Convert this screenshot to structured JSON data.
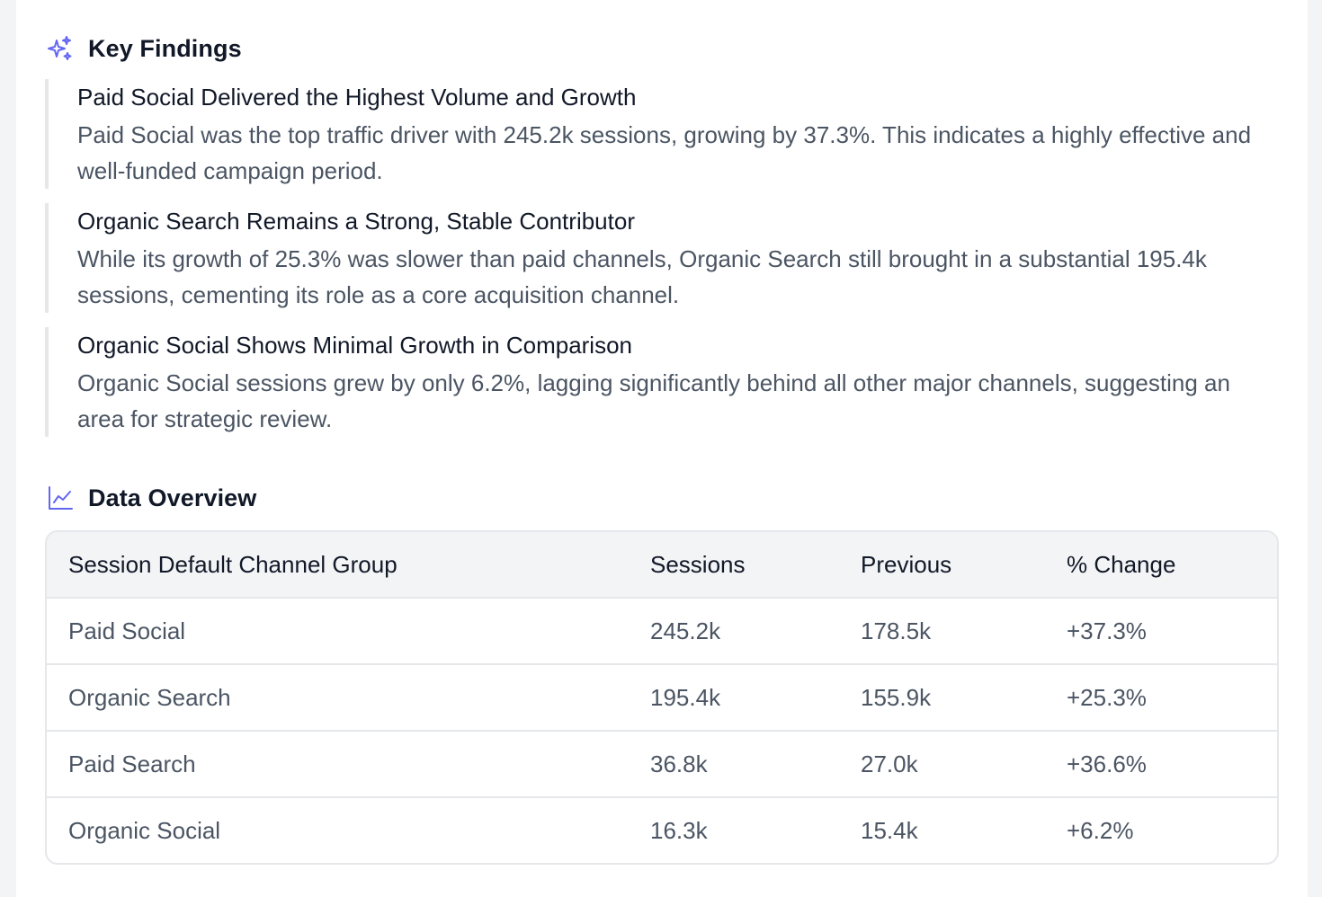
{
  "key_findings": {
    "title": "Key Findings",
    "icon": "sparkles-icon",
    "items": [
      {
        "title": "Paid Social Delivered the Highest Volume and Growth",
        "body": "Paid Social was the top traffic driver with 245.2k sessions, growing by 37.3%. This indicates a highly effective and well-funded campaign period."
      },
      {
        "title": "Organic Search Remains a Strong, Stable Contributor",
        "body": "While its growth of 25.3% was slower than paid channels, Organic Search still brought in a substantial 195.4k sessions, cementing its role as a core acquisition channel."
      },
      {
        "title": "Organic Social Shows Minimal Growth in Comparison",
        "body": "Organic Social sessions grew by only 6.2%, lagging significantly behind all other major channels, suggesting an area for strategic review."
      }
    ]
  },
  "data_overview": {
    "title": "Data Overview",
    "icon": "line-chart-icon",
    "columns": [
      "Session Default Channel Group",
      "Sessions",
      "Previous",
      "% Change"
    ],
    "rows": [
      [
        "Paid Social",
        "245.2k",
        "178.5k",
        "+37.3%"
      ],
      [
        "Organic Search",
        "195.4k",
        "155.9k",
        "+25.3%"
      ],
      [
        "Paid Search",
        "36.8k",
        "27.0k",
        "+36.6%"
      ],
      [
        "Organic Social",
        "16.3k",
        "15.4k",
        "+6.2%"
      ]
    ]
  },
  "colors": {
    "accent": "#6366f1",
    "heading": "#111827",
    "body_text": "#4b5563",
    "border": "#e5e7eb",
    "header_bg": "#f3f4f6"
  }
}
